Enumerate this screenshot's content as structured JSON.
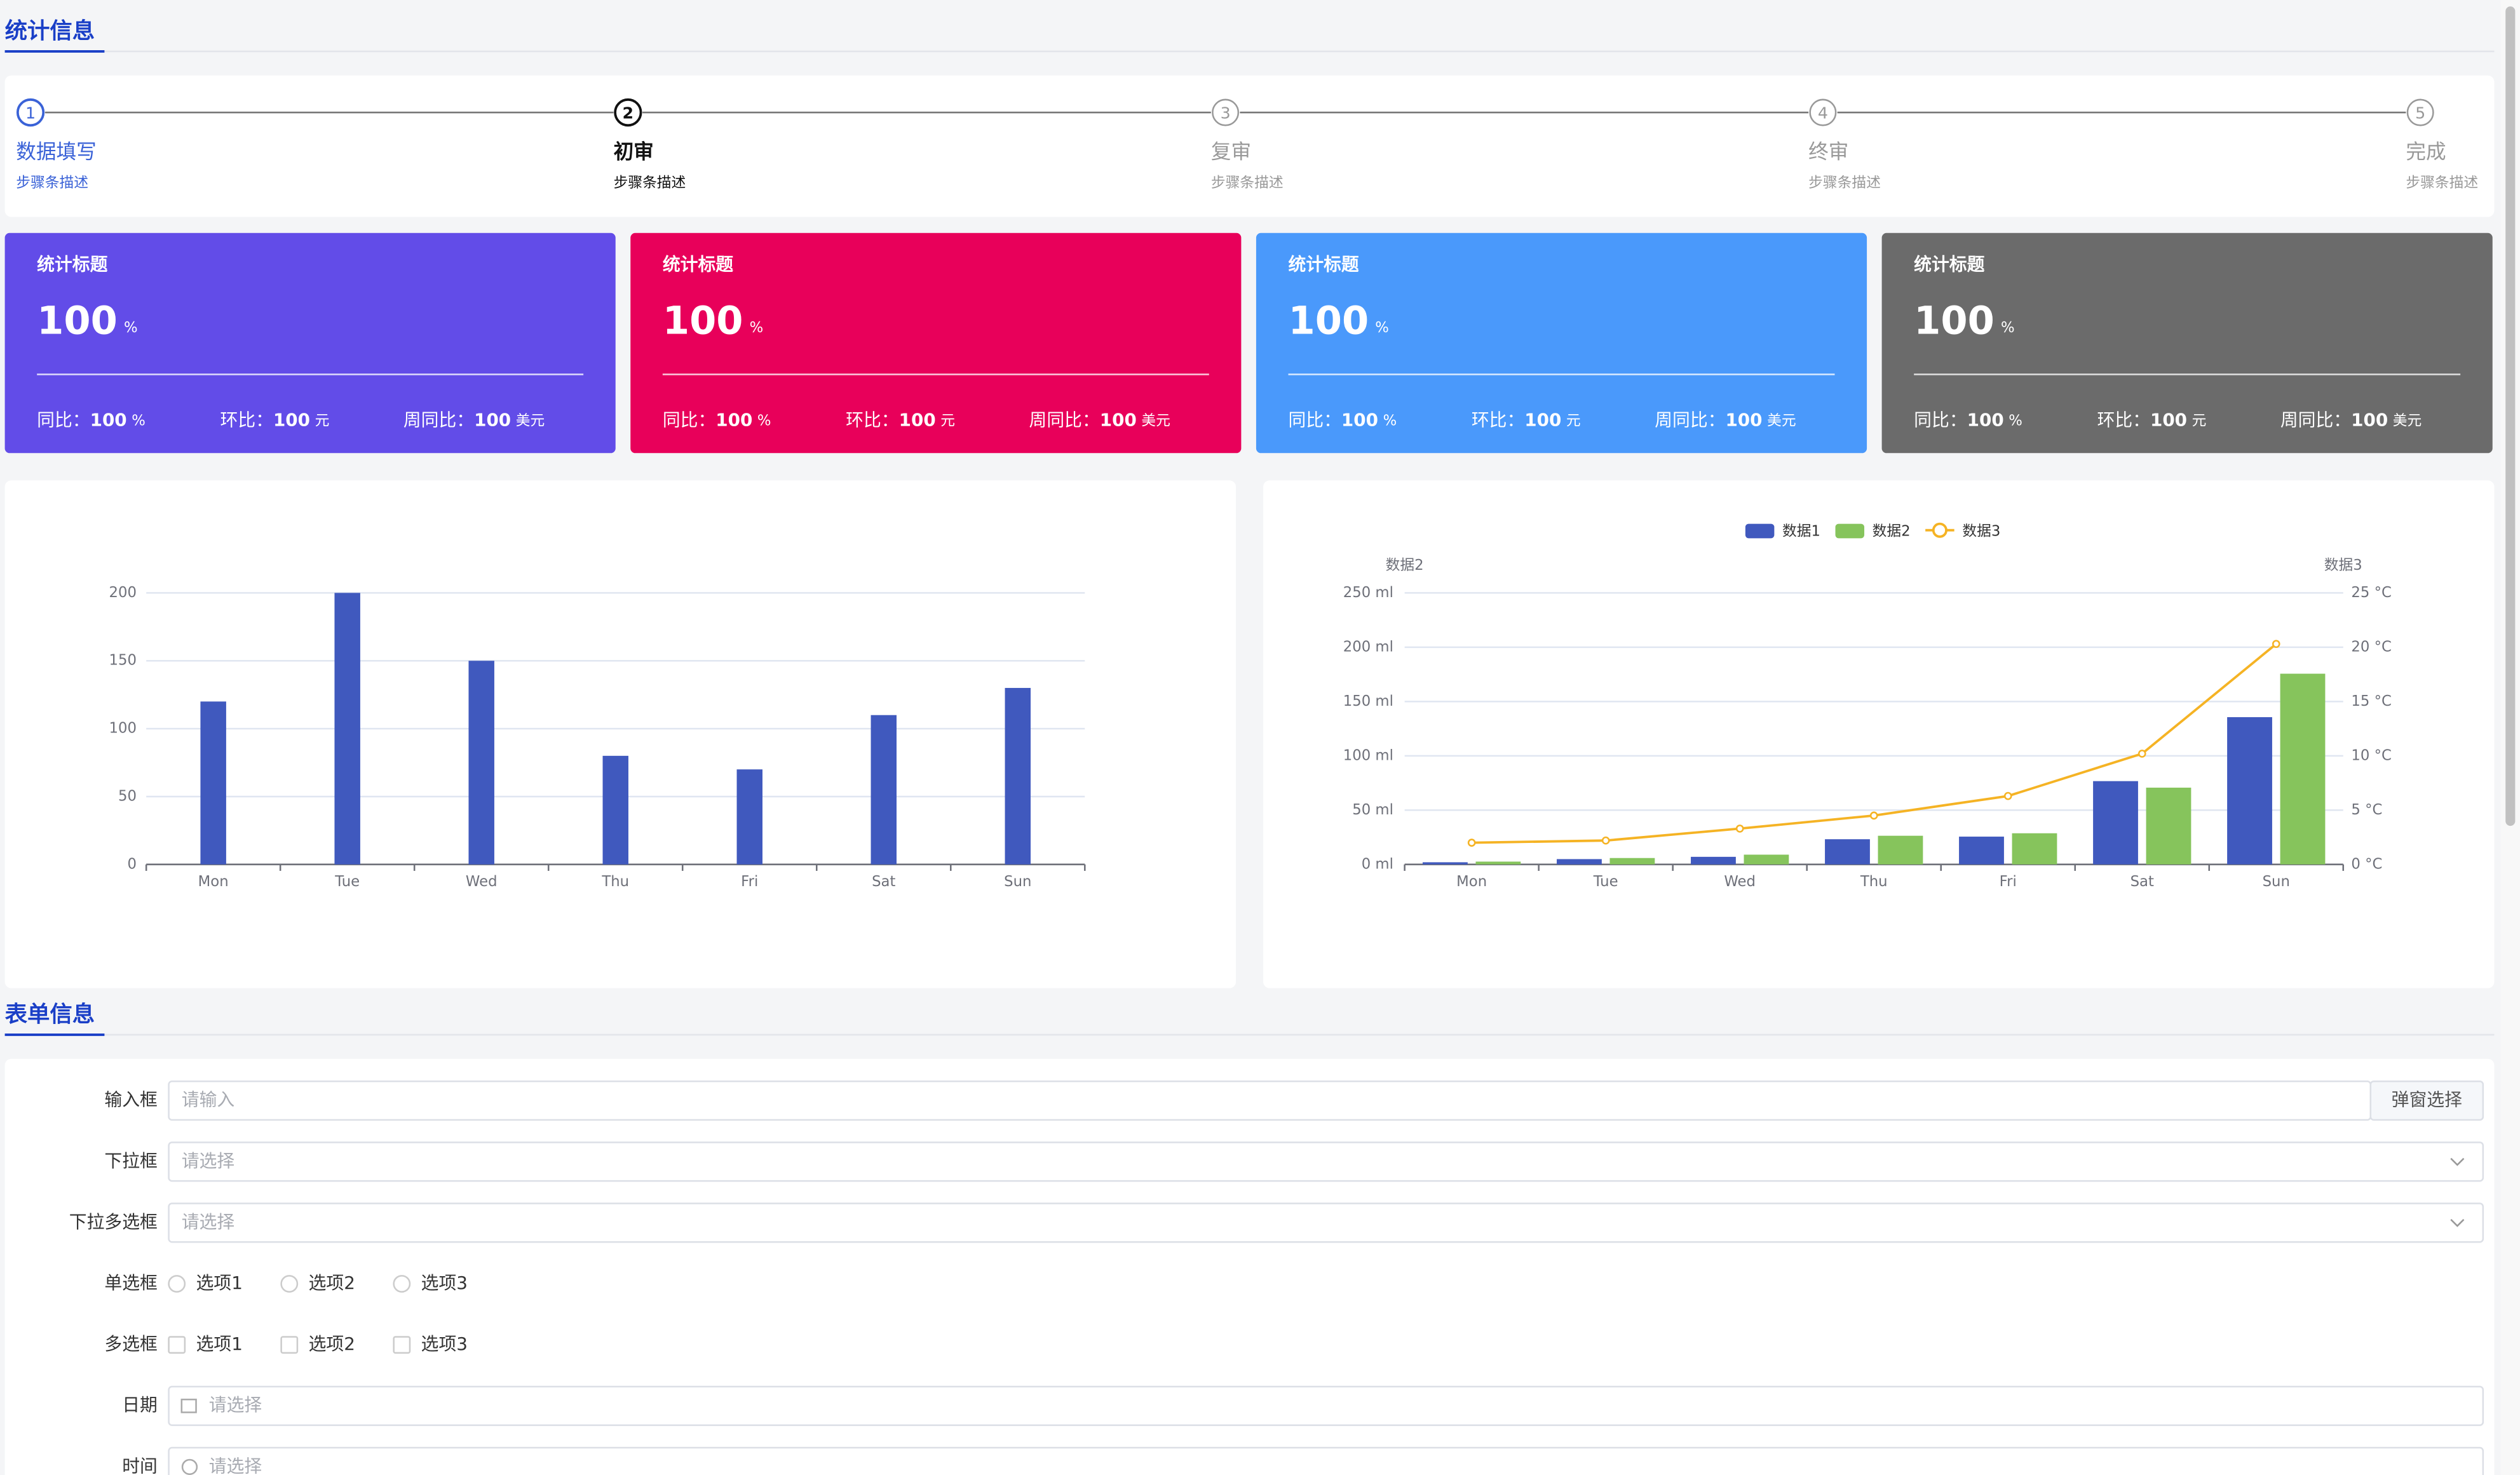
{
  "sections": {
    "stats": "统计信息",
    "form": "表单信息"
  },
  "steps": [
    {
      "number": 1,
      "title": "数据填写",
      "desc": "步骤条描述",
      "status": "finish"
    },
    {
      "number": 2,
      "title": "初审",
      "desc": "步骤条描述",
      "status": "process"
    },
    {
      "number": 3,
      "title": "复审",
      "desc": "步骤条描述",
      "status": "wait"
    },
    {
      "number": 4,
      "title": "终审",
      "desc": "步骤条描述",
      "status": "wait"
    },
    {
      "number": 5,
      "title": "完成",
      "desc": "步骤条描述",
      "status": "wait"
    }
  ],
  "stat_cards": [
    {
      "color": "#624ce8",
      "title": "统计标题",
      "value": 100,
      "unit": "%",
      "items": [
        {
          "label": "同比：",
          "value": 100,
          "unit": "%"
        },
        {
          "label": "环比：",
          "value": 100,
          "unit": "元"
        },
        {
          "label": "周同比：",
          "value": 100,
          "unit": "美元"
        }
      ]
    },
    {
      "color": "#e8005a",
      "title": "统计标题",
      "value": 100,
      "unit": "%",
      "items": [
        {
          "label": "同比：",
          "value": 100,
          "unit": "%"
        },
        {
          "label": "环比：",
          "value": 100,
          "unit": "元"
        },
        {
          "label": "周同比：",
          "value": 100,
          "unit": "美元"
        }
      ]
    },
    {
      "color": "#4a99fb",
      "title": "统计标题",
      "value": 100,
      "unit": "%",
      "items": [
        {
          "label": "同比：",
          "value": 100,
          "unit": "%"
        },
        {
          "label": "环比：",
          "value": 100,
          "unit": "元"
        },
        {
          "label": "周同比：",
          "value": 100,
          "unit": "美元"
        }
      ]
    },
    {
      "color": "#6b6b6b",
      "title": "统计标题",
      "value": 100,
      "unit": "%",
      "items": [
        {
          "label": "同比：",
          "value": 100,
          "unit": "%"
        },
        {
          "label": "环比：",
          "value": 100,
          "unit": "元"
        },
        {
          "label": "周同比：",
          "value": 100,
          "unit": "美元"
        }
      ]
    }
  ],
  "bar_chart": {
    "type": "bar",
    "categories": [
      "Mon",
      "Tue",
      "Wed",
      "Thu",
      "Fri",
      "Sat",
      "Sun"
    ],
    "values": [
      120,
      200,
      150,
      80,
      70,
      110,
      130
    ],
    "color": "#4059be",
    "ylim": [
      0,
      200
    ],
    "yticks": [
      0,
      50,
      100,
      150,
      200
    ],
    "grid": true
  },
  "mixed_chart": {
    "type": "bar-line",
    "categories": [
      "Mon",
      "Tue",
      "Wed",
      "Thu",
      "Fri",
      "Sat",
      "Sun"
    ],
    "y_label": "数据2",
    "y2_label": "数据3",
    "ylim": [
      0,
      250
    ],
    "yticks": [
      {
        "value": 0,
        "label": "0 ml"
      },
      {
        "value": 50,
        "label": "50 ml"
      },
      {
        "value": 100,
        "label": "100 ml"
      },
      {
        "value": 150,
        "label": "150 ml"
      },
      {
        "value": 200,
        "label": "200 ml"
      },
      {
        "value": 250,
        "label": "250 ml"
      }
    ],
    "y2lim": [
      0,
      25
    ],
    "y2ticks": [
      {
        "value": 0,
        "label": "0 °C"
      },
      {
        "value": 5,
        "label": "5 °C"
      },
      {
        "value": 10,
        "label": "10 °C"
      },
      {
        "value": 15,
        "label": "15 °C"
      },
      {
        "value": 20,
        "label": "20 °C"
      },
      {
        "value": 25,
        "label": "25 °C"
      }
    ],
    "grid": true,
    "series": [
      {
        "name": "数据1",
        "type": "bar",
        "color": "#4059be",
        "values": [
          2.0,
          4.9,
          7.0,
          23.2,
          25.6,
          76.7,
          135.6
        ]
      },
      {
        "name": "数据2",
        "type": "bar",
        "color": "#86c45c",
        "values": [
          2.6,
          5.9,
          9.0,
          26.4,
          28.7,
          70.7,
          175.6
        ]
      },
      {
        "name": "数据3",
        "type": "line",
        "axis": "y2",
        "color": "#f5b324",
        "values": [
          2.0,
          2.2,
          3.3,
          4.5,
          6.3,
          10.2,
          20.3
        ]
      }
    ]
  },
  "form": [
    {
      "kind": "input",
      "label": "输入框",
      "placeholder": "请输入",
      "button": "弹窗选择"
    },
    {
      "kind": "select",
      "label": "下拉框",
      "placeholder": "请选择"
    },
    {
      "kind": "select",
      "label": "下拉多选框",
      "placeholder": "请选择"
    },
    {
      "kind": "radio",
      "label": "单选框",
      "options": [
        "选项1",
        "选项2",
        "选项3"
      ]
    },
    {
      "kind": "checkbox",
      "label": "多选框",
      "options": [
        "选项1",
        "选项2",
        "选项3"
      ]
    },
    {
      "kind": "date",
      "label": "日期",
      "placeholder": "请选择"
    },
    {
      "kind": "time",
      "label": "时间",
      "placeholder": "请选择"
    }
  ]
}
